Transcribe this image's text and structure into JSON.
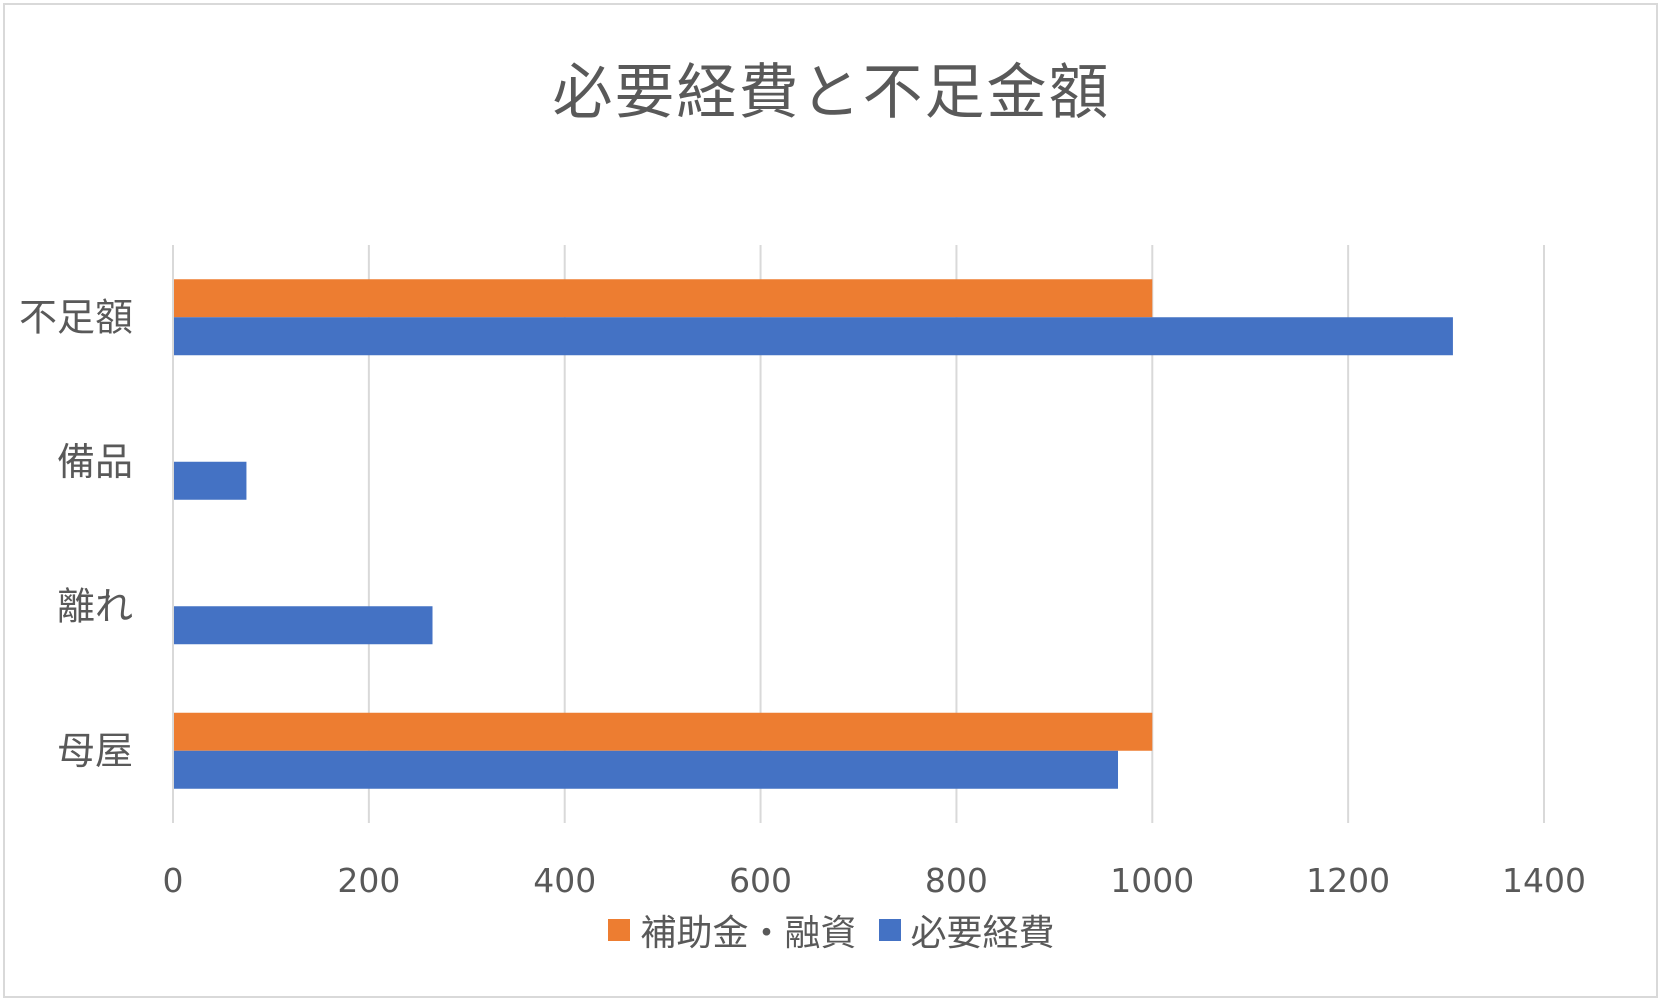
{
  "chart_data": {
    "type": "bar",
    "orientation": "horizontal",
    "title": "必要経費と不足金額",
    "categories": [
      "母屋",
      "離れ",
      "備品",
      "不足額"
    ],
    "series": [
      {
        "name": "必要経費",
        "color": "#4472C4",
        "values": [
          965,
          265,
          75,
          1307
        ]
      },
      {
        "name": "補助金・融資",
        "color": "#ED7D31",
        "values": [
          1000,
          null,
          null,
          1000
        ]
      }
    ],
    "xlim": [
      0,
      1400
    ],
    "xticks": [
      0,
      200,
      400,
      600,
      800,
      1000,
      1200,
      1400
    ],
    "tick_labels": [
      "0",
      "200",
      "400",
      "600",
      "800",
      "1000",
      "1200",
      "1400"
    ],
    "grid": true,
    "legend_position": "bottom",
    "legend_order": [
      "補助金・融資",
      "必要経費"
    ]
  }
}
